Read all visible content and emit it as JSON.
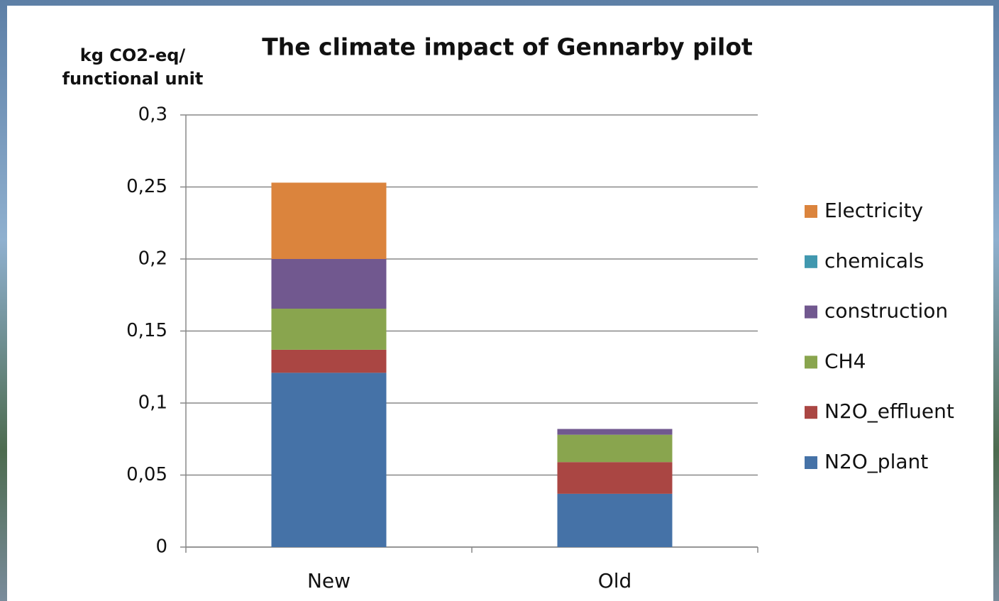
{
  "chart_data": {
    "type": "stacked_bar",
    "title": "The climate impact of Gennarby pilot",
    "y_label": "kg CO2-eq/ functional unit",
    "categories": [
      "New",
      "Old"
    ],
    "series": [
      {
        "name": "N2O_plant",
        "color": "#4572a7",
        "values": [
          0.121,
          0.037
        ]
      },
      {
        "name": "N2O_effluent",
        "color": "#aa4643",
        "values": [
          0.016,
          0.022
        ]
      },
      {
        "name": "CH4",
        "color": "#89a54e",
        "values": [
          0.0285,
          0.019
        ]
      },
      {
        "name": "construction",
        "color": "#71588f",
        "values": [
          0.0345,
          0.004
        ]
      },
      {
        "name": "chemicals",
        "color": "#4198af",
        "values": [
          0,
          0
        ]
      },
      {
        "name": "Electricity",
        "color": "#db843d",
        "values": [
          0.053,
          0
        ]
      }
    ],
    "ylim": [
      0,
      0.3
    ],
    "yticks": [
      0,
      {
        "value": 0.05,
        "label": "0,05"
      },
      {
        "value": 0.1,
        "label": "0,1"
      },
      {
        "value": 0.15,
        "label": "0,15"
      },
      {
        "value": 0.2,
        "label": "0,2"
      },
      {
        "value": 0.25,
        "label": "0,25"
      },
      {
        "value": 0.3,
        "label": "0,3"
      }
    ],
    "grid": true,
    "legend": "right"
  }
}
